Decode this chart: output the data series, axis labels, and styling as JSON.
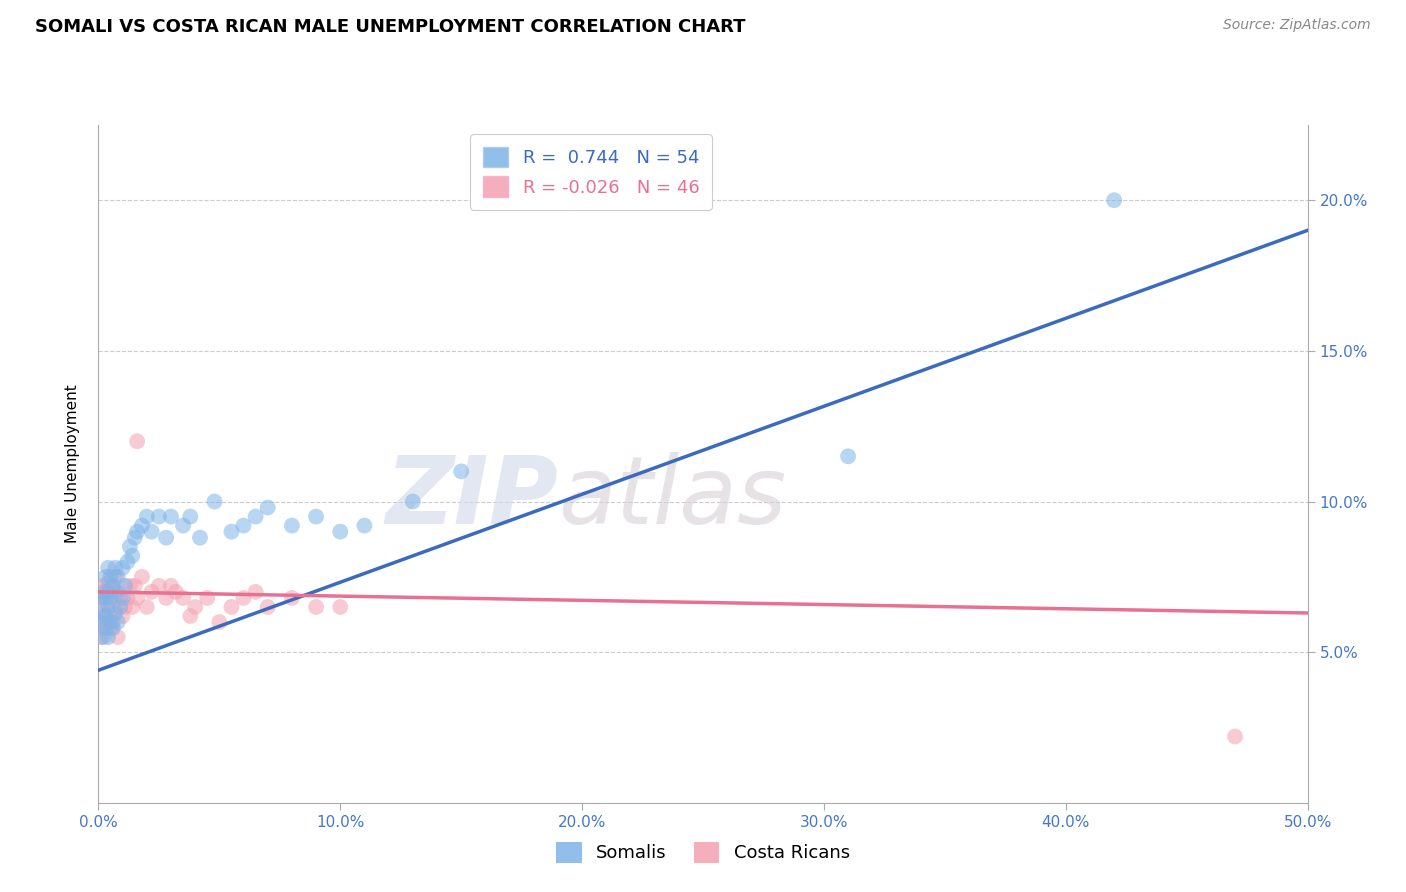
{
  "title": "SOMALI VS COSTA RICAN MALE UNEMPLOYMENT CORRELATION CHART",
  "source": "Source: ZipAtlas.com",
  "ylabel": "Male Unemployment",
  "xlim": [
    0.0,
    0.5
  ],
  "ylim": [
    0.0,
    0.225
  ],
  "xticks": [
    0.0,
    0.1,
    0.2,
    0.3,
    0.4,
    0.5
  ],
  "xtick_labels": [
    "0.0%",
    "10.0%",
    "20.0%",
    "30.0%",
    "40.0%",
    "50.0%"
  ],
  "yticks": [
    0.05,
    0.1,
    0.15,
    0.2
  ],
  "ytick_labels": [
    "5.0%",
    "10.0%",
    "15.0%",
    "20.0%"
  ],
  "grid_color": "#cccccc",
  "blue_color": "#7fb3e8",
  "pink_color": "#f4a0b0",
  "blue_line_color": "#3a6bbf",
  "pink_line_color": "#e87090",
  "watermark_zip": "ZIP",
  "watermark_atlas": "atlas",
  "legend_blue_R": "0.744",
  "legend_blue_N": "54",
  "legend_pink_R": "-0.026",
  "legend_pink_N": "46",
  "legend_label_blue": "Somalis",
  "legend_label_pink": "Costa Ricans",
  "somali_x": [
    0.001,
    0.001,
    0.002,
    0.002,
    0.002,
    0.003,
    0.003,
    0.003,
    0.003,
    0.004,
    0.004,
    0.004,
    0.004,
    0.005,
    0.005,
    0.005,
    0.006,
    0.006,
    0.007,
    0.007,
    0.007,
    0.008,
    0.008,
    0.009,
    0.01,
    0.01,
    0.011,
    0.012,
    0.013,
    0.014,
    0.015,
    0.016,
    0.018,
    0.02,
    0.022,
    0.025,
    0.028,
    0.03,
    0.035,
    0.038,
    0.042,
    0.048,
    0.055,
    0.06,
    0.065,
    0.07,
    0.08,
    0.09,
    0.1,
    0.11,
    0.13,
    0.15,
    0.31,
    0.42
  ],
  "somali_y": [
    0.06,
    0.068,
    0.055,
    0.063,
    0.07,
    0.058,
    0.062,
    0.068,
    0.075,
    0.055,
    0.065,
    0.07,
    0.078,
    0.06,
    0.068,
    0.075,
    0.058,
    0.072,
    0.063,
    0.07,
    0.078,
    0.06,
    0.075,
    0.065,
    0.068,
    0.078,
    0.072,
    0.08,
    0.085,
    0.082,
    0.088,
    0.09,
    0.092,
    0.095,
    0.09,
    0.095,
    0.088,
    0.095,
    0.092,
    0.095,
    0.088,
    0.1,
    0.09,
    0.092,
    0.095,
    0.098,
    0.092,
    0.095,
    0.09,
    0.092,
    0.1,
    0.11,
    0.115,
    0.2
  ],
  "costa_rican_x": [
    0.001,
    0.001,
    0.002,
    0.002,
    0.002,
    0.003,
    0.003,
    0.004,
    0.004,
    0.005,
    0.005,
    0.006,
    0.006,
    0.007,
    0.007,
    0.008,
    0.008,
    0.009,
    0.01,
    0.011,
    0.012,
    0.013,
    0.014,
    0.015,
    0.016,
    0.018,
    0.02,
    0.022,
    0.025,
    0.028,
    0.03,
    0.032,
    0.035,
    0.038,
    0.04,
    0.045,
    0.05,
    0.055,
    0.06,
    0.065,
    0.07,
    0.08,
    0.09,
    0.1,
    0.016,
    0.47
  ],
  "costa_rican_y": [
    0.055,
    0.065,
    0.058,
    0.068,
    0.072,
    0.06,
    0.07,
    0.063,
    0.073,
    0.058,
    0.068,
    0.06,
    0.072,
    0.065,
    0.075,
    0.055,
    0.07,
    0.068,
    0.062,
    0.065,
    0.068,
    0.072,
    0.065,
    0.072,
    0.068,
    0.075,
    0.065,
    0.07,
    0.072,
    0.068,
    0.072,
    0.07,
    0.068,
    0.062,
    0.065,
    0.068,
    0.06,
    0.065,
    0.068,
    0.07,
    0.065,
    0.068,
    0.065,
    0.065,
    0.12,
    0.022
  ],
  "blue_line_x": [
    0.0,
    0.5
  ],
  "blue_line_y": [
    0.044,
    0.19
  ],
  "pink_line_x": [
    0.0,
    0.5
  ],
  "pink_line_y": [
    0.07,
    0.063
  ],
  "title_fontsize": 13,
  "axis_label_fontsize": 11,
  "tick_fontsize": 11,
  "legend_fontsize": 13,
  "marker_size": 130,
  "marker_alpha": 0.55,
  "line_width": 2.5
}
